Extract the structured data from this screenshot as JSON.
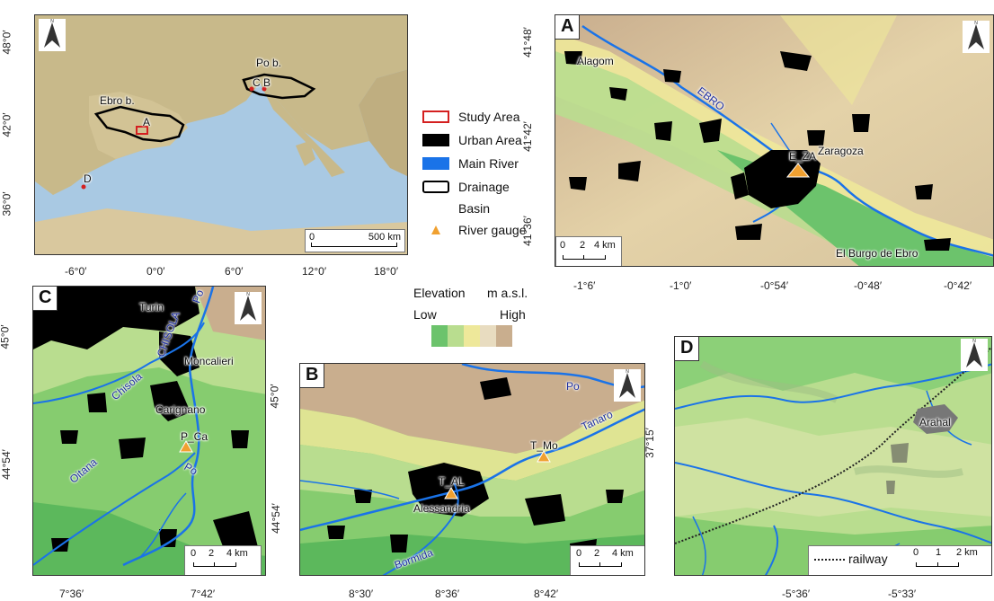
{
  "overview": {
    "basin_labels": [
      "Ebro b.",
      "Po b."
    ],
    "site_labels": [
      "A",
      "B",
      "C",
      "D"
    ],
    "scale": {
      "zero": "0",
      "dist": "500 km"
    },
    "lon_ticks": [
      "-6°0′",
      "0°0′",
      "6°0′",
      "12°0′",
      "18°0′"
    ],
    "lat_ticks": [
      "48°0′",
      "42°0′",
      "36°0′"
    ]
  },
  "legend": {
    "items": [
      {
        "label": "Study Area",
        "icon": "study-area-square"
      },
      {
        "label": "Urban Area",
        "icon": "urban-area-square"
      },
      {
        "label": "Main River",
        "icon": "main-river-square"
      },
      {
        "label": "Drainage",
        "icon": "drainage-basin-square"
      },
      {
        "label": "Basin",
        "icon": "none"
      },
      {
        "label": "River gauge",
        "icon": "gauge-triangle"
      }
    ],
    "colors": {
      "study": "#d42020",
      "urban": "#000000",
      "river": "#1a73e8",
      "gauge": "#f0a030"
    }
  },
  "elevation": {
    "title": "Elevation",
    "unit": "m a.s.l.",
    "low": "Low",
    "high": "High",
    "colors": [
      "#6cc36c",
      "#b9dd8f",
      "#eee89a",
      "#e8dcc0",
      "#c9ae8e"
    ]
  },
  "panel_a": {
    "letter": "A",
    "places": [
      "Alagom",
      "Zaragoza",
      "El Burgo de Ebro"
    ],
    "river": "EBRO",
    "gauge": "E_ZA",
    "scale": {
      "z": "0",
      "m": "2",
      "e": "4 km"
    },
    "lon_ticks": [
      "-1°6′",
      "-1°0′",
      "-0°54′",
      "-0°48′",
      "-0°42′"
    ],
    "lat_ticks": [
      "41°48′",
      "41°42′",
      "41°36′"
    ]
  },
  "panel_c": {
    "letter": "C",
    "places": [
      "Turin",
      "Moncalieri",
      "Carignano"
    ],
    "rivers": [
      "Po",
      "CHISOLA",
      "Chisola",
      "Oitana",
      "Po"
    ],
    "gauge": "P_Ca",
    "scale": {
      "z": "0",
      "m": "2",
      "e": "4 km"
    },
    "lon_ticks": [
      "7°36′",
      "7°42′"
    ],
    "lat_ticks": [
      "45°0′",
      "44°54′"
    ]
  },
  "panel_b": {
    "letter": "B",
    "places": [
      "Alessandria"
    ],
    "rivers": [
      "Po",
      "Tanaro",
      "Bormida"
    ],
    "gauges": [
      "T_AL",
      "T_Mo"
    ],
    "scale": {
      "z": "0",
      "m": "2",
      "e": "4 km"
    },
    "lon_ticks": [
      "8°30′",
      "8°36′",
      "8°42′"
    ],
    "lat_ticks": [
      "45°0′",
      "44°54′"
    ]
  },
  "panel_d": {
    "letter": "D",
    "places": [
      "Arahal"
    ],
    "railway": "railway",
    "scale": {
      "z": "0",
      "m": "1",
      "e": "2 km"
    },
    "lon_ticks": [
      "-5°36′",
      "-5°33′"
    ],
    "lat_ticks": [
      "37°15′"
    ]
  }
}
